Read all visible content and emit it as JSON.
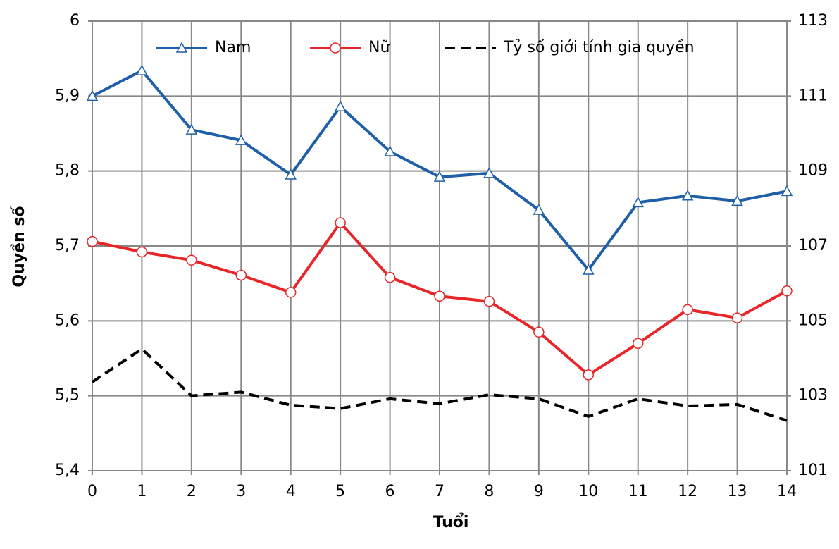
{
  "chart_data": {
    "type": "line",
    "x_label": "Tuổi",
    "y_label": "Quyền số",
    "x": [
      0,
      1,
      2,
      3,
      4,
      5,
      6,
      7,
      8,
      9,
      10,
      11,
      12,
      13,
      14
    ],
    "xlim": [
      0,
      14
    ],
    "ylim": [
      5.4,
      6
    ],
    "yticks": [
      {
        "value": 5.4,
        "label": "5,4"
      },
      {
        "value": 5.5,
        "label": "5,5"
      },
      {
        "value": 5.6,
        "label": "5,6"
      },
      {
        "value": 5.7,
        "label": "5,7"
      },
      {
        "value": 5.8,
        "label": "5,8"
      },
      {
        "value": 5.9,
        "label": "5,9"
      },
      6
    ],
    "y2lim": [
      101,
      113
    ],
    "y2ticks": [
      101,
      103,
      105,
      107,
      109,
      111,
      113
    ],
    "grid": true,
    "legend": "top",
    "series": [
      {
        "name": "Nam",
        "color": "#1f5fa8",
        "marker": "triangle",
        "values": [
          5.9,
          5.934,
          5.855,
          5.841,
          5.795,
          5.886,
          5.826,
          5.792,
          5.797,
          5.748,
          5.668,
          5.758,
          5.767,
          5.76,
          5.773
        ]
      },
      {
        "name": "Nữ",
        "color": "#e8262a",
        "marker": "circle",
        "values": [
          5.706,
          5.692,
          5.681,
          5.661,
          5.638,
          5.731,
          5.658,
          5.633,
          5.626,
          5.585,
          5.528,
          5.57,
          5.615,
          5.604,
          5.64
        ]
      },
      {
        "name": "Tỷ số giới tính gia quyền",
        "color": "#000000",
        "dash": true,
        "axis": "y2",
        "values": [
          103.37,
          104.25,
          103.0,
          103.1,
          102.75,
          102.66,
          102.92,
          102.79,
          103.03,
          102.92,
          102.45,
          102.92,
          102.73,
          102.77,
          102.34
        ]
      }
    ]
  }
}
